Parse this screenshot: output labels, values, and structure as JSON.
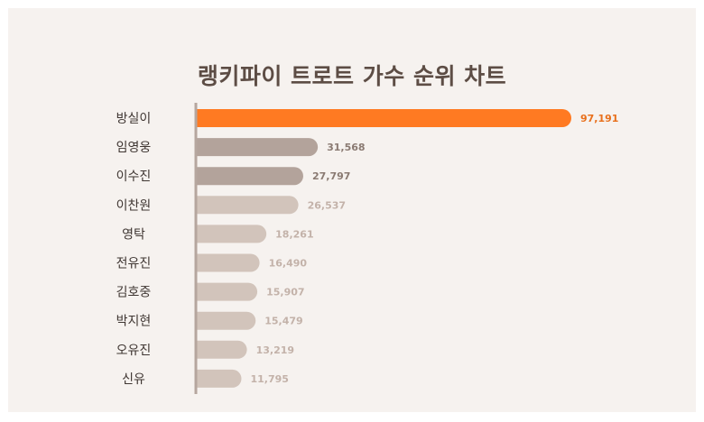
{
  "colors": {
    "background": "#f6f2ef",
    "title": "#5d4d45",
    "highlight": "#ff7a22",
    "dark": "#b3a39b",
    "light": "#d2c4bb",
    "axis": "#b5a69e",
    "label": "#3f3632"
  },
  "chart_data": {
    "type": "bar",
    "orientation": "horizontal",
    "title": "랭키파이 트로트 가수 순위 차트",
    "categories": [
      "방실이",
      "임영웅",
      "이수진",
      "이찬원",
      "영탁",
      "전유진",
      "김호중",
      "박지현",
      "오유진",
      "신유"
    ],
    "values": [
      97191,
      31568,
      27797,
      26537,
      18261,
      16490,
      15907,
      15479,
      13219,
      11795
    ],
    "value_labels": [
      "97,191",
      "31,568",
      "27,797",
      "26,537",
      "18,261",
      "16,490",
      "15,907",
      "15,479",
      "13,219",
      "11,795"
    ],
    "xlim": [
      0,
      97191
    ],
    "grid": false,
    "legend": "none"
  }
}
